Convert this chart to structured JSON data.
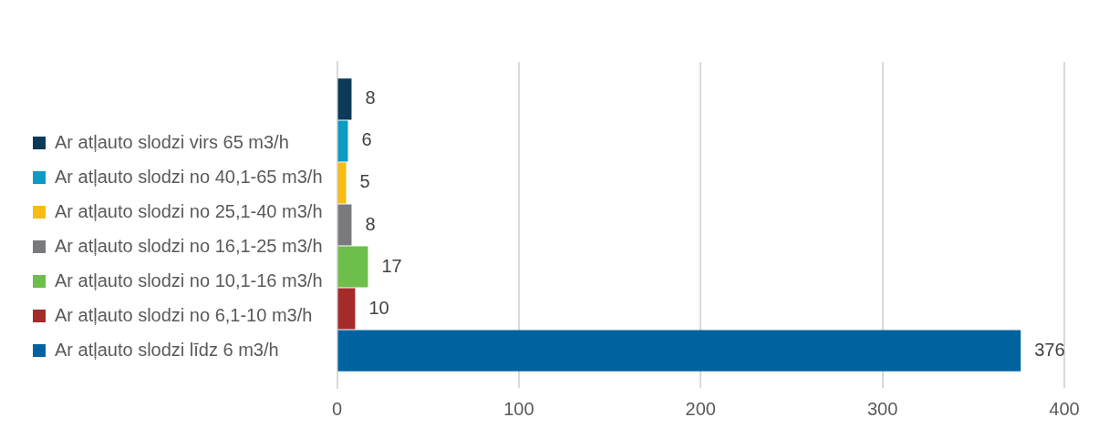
{
  "chart_data": {
    "type": "bar",
    "orientation": "horizontal",
    "categories": [
      null
    ],
    "series": [
      {
        "name": "Ar atļauto slodzi virs 65 m3/h",
        "color": "#0d3a58",
        "values": [
          8
        ]
      },
      {
        "name": "Ar atļauto slodzi no 40,1-65 m3/h",
        "color": "#0b9bc4",
        "values": [
          6
        ]
      },
      {
        "name": "Ar atļauto slodzi no 25,1-40 m3/h",
        "color": "#f8bc13",
        "values": [
          5
        ]
      },
      {
        "name": "Ar atļauto slodzi no 16,1-25 m3/h",
        "color": "#7a7a7e",
        "values": [
          8
        ]
      },
      {
        "name": "Ar atļauto slodzi no 10,1-16 m3/h",
        "color": "#6dbe4a",
        "values": [
          17
        ]
      },
      {
        "name": "Ar atļauto slodzi no 6,1-10 m3/h",
        "color": "#a52a2a",
        "values": [
          10
        ]
      },
      {
        "name": "Ar atļauto slodzi līdz 6 m3/h",
        "color": "#0063a0",
        "values": [
          376
        ]
      }
    ],
    "xlim": [
      0,
      400
    ],
    "xticks": [
      0,
      100,
      200,
      300,
      400
    ],
    "grid": "x",
    "legend": "left",
    "data_labels": true
  }
}
